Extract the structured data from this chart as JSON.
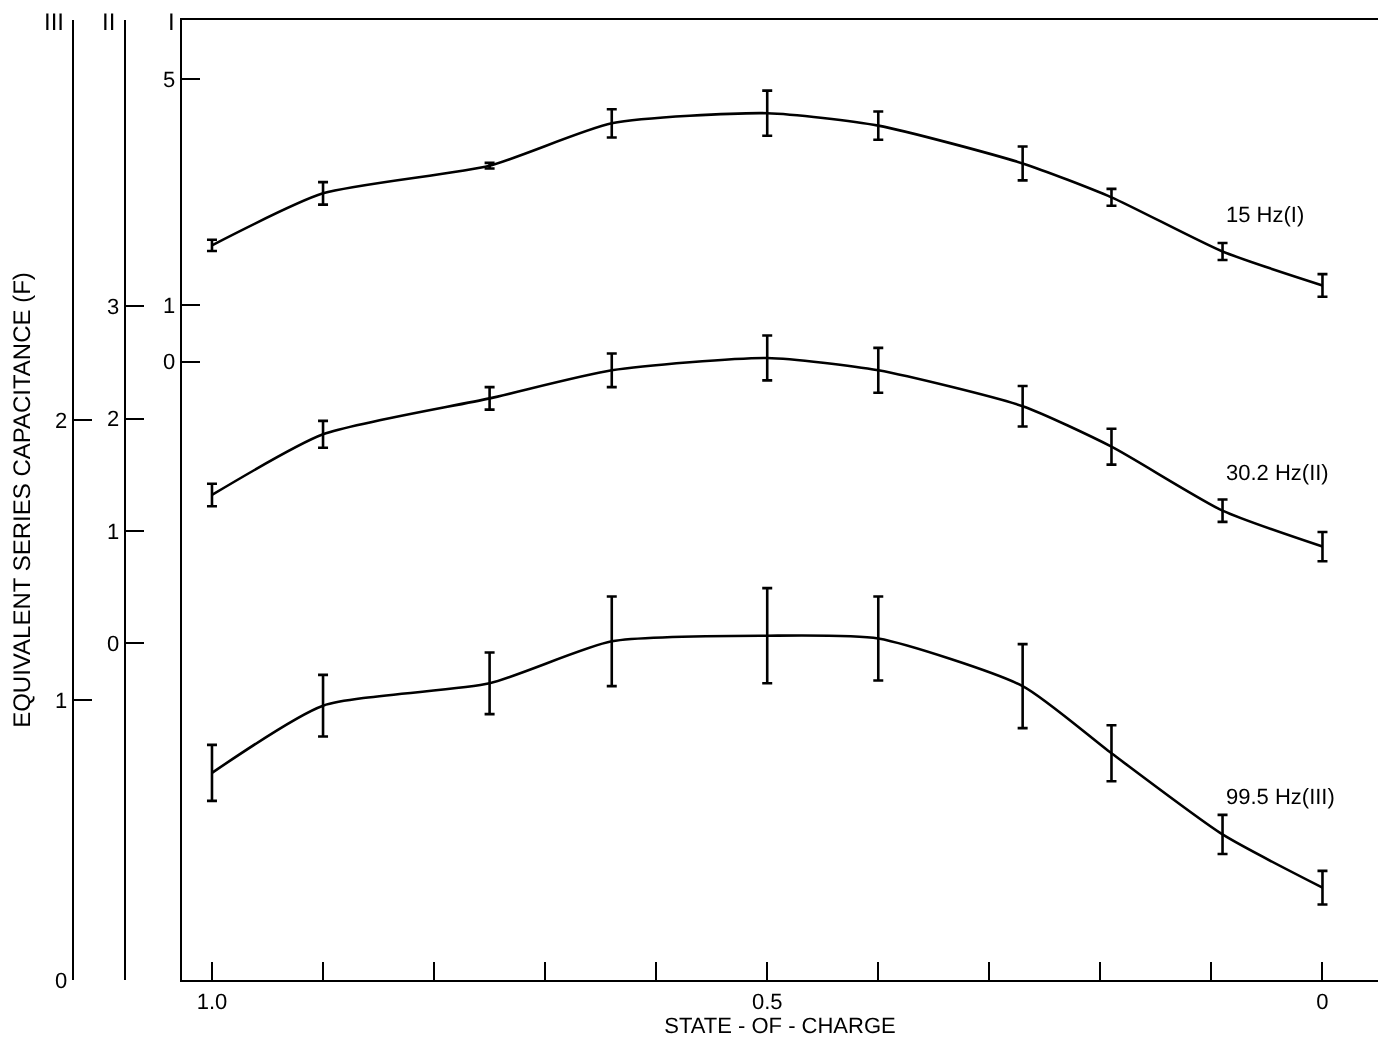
{
  "chart_data": {
    "type": "line",
    "xlabel": "STATE - OF - CHARGE",
    "ylabel": "EQUIVALENT SERIES CAPACITANCE (F)",
    "annotations": [
      "I",
      "II",
      "III"
    ],
    "x": [
      1.0,
      0.9,
      0.75,
      0.64,
      0.5,
      0.4,
      0.27,
      0.19,
      0.09,
      0
    ],
    "xlim": [
      1.027,
      -0.05
    ],
    "xticks": [
      {
        "value": 1.0,
        "label": "1.0"
      },
      {
        "value": 0.9,
        "label": null
      },
      {
        "value": 0.8,
        "label": null
      },
      {
        "value": 0.7,
        "label": null
      },
      {
        "value": 0.6,
        "label": null
      },
      0.5,
      {
        "value": 0.4,
        "label": null
      },
      {
        "value": 0.3,
        "label": null
      },
      {
        "value": 0.2,
        "label": null
      },
      {
        "value": 0.1,
        "label": null
      },
      0
    ],
    "ylim": [
      0,
      3.43
    ],
    "yticks": [
      0,
      1,
      2
    ],
    "y2lim": [
      -3.0,
      5.55
    ],
    "y2ticks": [
      0,
      1,
      2,
      3
    ],
    "y3lim": [
      -10.95,
      6.05
    ],
    "y3ticks": [
      0,
      1,
      5
    ],
    "grid": false,
    "legend": false,
    "marker": "none",
    "line_style": "solid",
    "series": [
      {
        "name": "15 Hz(I)",
        "color": "#000000",
        "axis": "y3",
        "values": [
          2.06,
          2.98,
          3.47,
          4.22,
          4.4,
          4.18,
          3.51,
          2.91,
          1.95,
          1.35
        ],
        "errors": [
          0.1,
          0.2,
          0.05,
          0.25,
          0.4,
          0.25,
          0.3,
          0.15,
          0.15,
          0.2
        ]
      },
      {
        "name": "30.2 Hz(II)",
        "color": "#000000",
        "axis": "y2",
        "values": [
          1.32,
          1.86,
          2.18,
          2.43,
          2.54,
          2.43,
          2.11,
          1.75,
          1.18,
          0.86
        ],
        "errors": [
          0.1,
          0.12,
          0.1,
          0.15,
          0.2,
          0.2,
          0.18,
          0.16,
          0.1,
          0.13
        ]
      },
      {
        "name": "99.5 Hz(III)",
        "color": "#000000",
        "values": [
          0.74,
          0.98,
          1.06,
          1.21,
          1.23,
          1.22,
          1.05,
          0.81,
          0.52,
          0.33
        ],
        "errors": [
          0.1,
          0.11,
          0.11,
          0.16,
          0.17,
          0.15,
          0.15,
          0.1,
          0.07,
          0.06
        ]
      }
    ]
  }
}
